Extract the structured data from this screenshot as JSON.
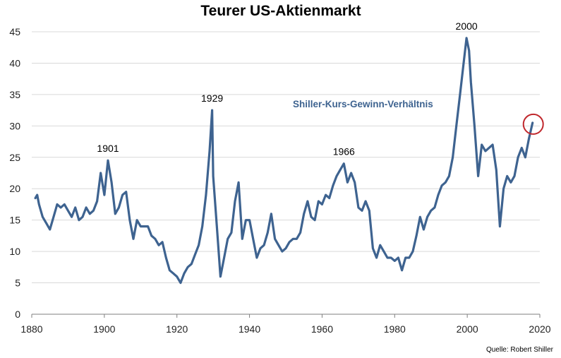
{
  "chart_data": {
    "type": "line",
    "title": "Teurer US-Aktienmarkt",
    "source": "Quelle: Robert Shiller",
    "xlim": [
      1880,
      2020
    ],
    "ylim": [
      0,
      45
    ],
    "x_ticks": [
      1880,
      1900,
      1920,
      1940,
      1960,
      1980,
      2000,
      2020
    ],
    "y_ticks": [
      0,
      5,
      10,
      15,
      20,
      25,
      30,
      35,
      40,
      45
    ],
    "grid": "horizontal",
    "line_color": "#3e6390",
    "highlight_color": "#c0282d",
    "series": [
      {
        "name": "Shiller-Kurs-Gewinn-Verhältnis",
        "points": [
          [
            1881,
            18.5
          ],
          [
            1881.5,
            19
          ],
          [
            1882,
            17.5
          ],
          [
            1883,
            15.5
          ],
          [
            1884,
            14.5
          ],
          [
            1885,
            13.5
          ],
          [
            1886,
            15.5
          ],
          [
            1887,
            17.5
          ],
          [
            1888,
            17
          ],
          [
            1889,
            17.5
          ],
          [
            1890,
            16.5
          ],
          [
            1891,
            15.5
          ],
          [
            1892,
            17
          ],
          [
            1893,
            15
          ],
          [
            1894,
            15.5
          ],
          [
            1895,
            17
          ],
          [
            1896,
            16
          ],
          [
            1897,
            16.5
          ],
          [
            1898,
            18
          ],
          [
            1899,
            22.5
          ],
          [
            1900,
            19
          ],
          [
            1901,
            24.5
          ],
          [
            1902,
            21
          ],
          [
            1903,
            16
          ],
          [
            1904,
            17
          ],
          [
            1905,
            19
          ],
          [
            1906,
            19.5
          ],
          [
            1907,
            15
          ],
          [
            1908,
            12
          ],
          [
            1909,
            15
          ],
          [
            1910,
            14
          ],
          [
            1911,
            14
          ],
          [
            1912,
            14
          ],
          [
            1913,
            12.5
          ],
          [
            1914,
            12
          ],
          [
            1915,
            11
          ],
          [
            1916,
            11.5
          ],
          [
            1917,
            9
          ],
          [
            1918,
            7
          ],
          [
            1919,
            6.5
          ],
          [
            1920,
            6
          ],
          [
            1921,
            5
          ],
          [
            1922,
            6.5
          ],
          [
            1923,
            7.5
          ],
          [
            1924,
            8
          ],
          [
            1925,
            9.5
          ],
          [
            1926,
            11
          ],
          [
            1927,
            14
          ],
          [
            1928,
            19
          ],
          [
            1929,
            26
          ],
          [
            1929.7,
            32.5
          ],
          [
            1930,
            22
          ],
          [
            1931,
            14
          ],
          [
            1932,
            6
          ],
          [
            1933,
            9
          ],
          [
            1934,
            12
          ],
          [
            1935,
            13
          ],
          [
            1936,
            18
          ],
          [
            1937,
            21
          ],
          [
            1938,
            12
          ],
          [
            1939,
            15
          ],
          [
            1940,
            15
          ],
          [
            1941,
            12
          ],
          [
            1942,
            9
          ],
          [
            1943,
            10.5
          ],
          [
            1944,
            11
          ],
          [
            1945,
            13
          ],
          [
            1946,
            16
          ],
          [
            1947,
            12
          ],
          [
            1948,
            11
          ],
          [
            1949,
            10
          ],
          [
            1950,
            10.5
          ],
          [
            1951,
            11.5
          ],
          [
            1952,
            12
          ],
          [
            1953,
            12
          ],
          [
            1954,
            13
          ],
          [
            1955,
            16
          ],
          [
            1956,
            18
          ],
          [
            1957,
            15.5
          ],
          [
            1958,
            15
          ],
          [
            1959,
            18
          ],
          [
            1960,
            17.5
          ],
          [
            1961,
            19
          ],
          [
            1962,
            18.5
          ],
          [
            1963,
            20.5
          ],
          [
            1964,
            22
          ],
          [
            1965,
            23
          ],
          [
            1966,
            24
          ],
          [
            1967,
            21
          ],
          [
            1968,
            22.5
          ],
          [
            1969,
            21
          ],
          [
            1970,
            17
          ],
          [
            1971,
            16.5
          ],
          [
            1972,
            18
          ],
          [
            1973,
            16.5
          ],
          [
            1974,
            10.5
          ],
          [
            1975,
            9
          ],
          [
            1976,
            11
          ],
          [
            1977,
            10
          ],
          [
            1978,
            9
          ],
          [
            1979,
            9
          ],
          [
            1980,
            8.5
          ],
          [
            1981,
            9
          ],
          [
            1982,
            7
          ],
          [
            1983,
            9
          ],
          [
            1984,
            9
          ],
          [
            1985,
            10
          ],
          [
            1986,
            12.5
          ],
          [
            1987,
            15.5
          ],
          [
            1988,
            13.5
          ],
          [
            1989,
            15.5
          ],
          [
            1990,
            16.5
          ],
          [
            1991,
            17
          ],
          [
            1992,
            19
          ],
          [
            1993,
            20.5
          ],
          [
            1994,
            21
          ],
          [
            1995,
            22
          ],
          [
            1996,
            25
          ],
          [
            1997,
            30
          ],
          [
            1998,
            35
          ],
          [
            1999,
            40
          ],
          [
            1999.8,
            44
          ],
          [
            2000.5,
            42
          ],
          [
            2001,
            37
          ],
          [
            2002,
            30
          ],
          [
            2003,
            22
          ],
          [
            2004,
            27
          ],
          [
            2005,
            26
          ],
          [
            2006,
            26.5
          ],
          [
            2007,
            27
          ],
          [
            2008,
            23
          ],
          [
            2009,
            14
          ],
          [
            2010,
            20
          ],
          [
            2011,
            22
          ],
          [
            2012,
            21
          ],
          [
            2013,
            22
          ],
          [
            2014,
            25
          ],
          [
            2015,
            26.5
          ],
          [
            2016,
            25
          ],
          [
            2017,
            28
          ],
          [
            2018,
            30.5
          ]
        ]
      }
    ],
    "annotations": [
      {
        "label": "1901",
        "x": 1901,
        "y": 24.5
      },
      {
        "label": "1929",
        "x": 1929.7,
        "y": 32.5
      },
      {
        "label": "1966",
        "x": 1966,
        "y": 24
      },
      {
        "label": "2000",
        "x": 1999.8,
        "y": 44
      }
    ],
    "highlight": {
      "x": 2018,
      "y": 30.5
    }
  }
}
